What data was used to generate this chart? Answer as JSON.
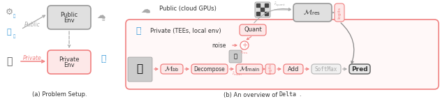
{
  "fig_width": 6.4,
  "fig_height": 1.42,
  "dpi": 100,
  "bg_color": "#ffffff",
  "pink": "#f08080",
  "light_pink": "#fde8e8",
  "gray_bg": "#e0e0e0",
  "pink_bg": "#fde8e8",
  "blue": "#3a9ad9",
  "caption_left": "(a) Problem Setup.",
  "caption_right_prefix": "(b) An overview of ",
  "caption_delta": "Delta",
  "caption_period": "."
}
